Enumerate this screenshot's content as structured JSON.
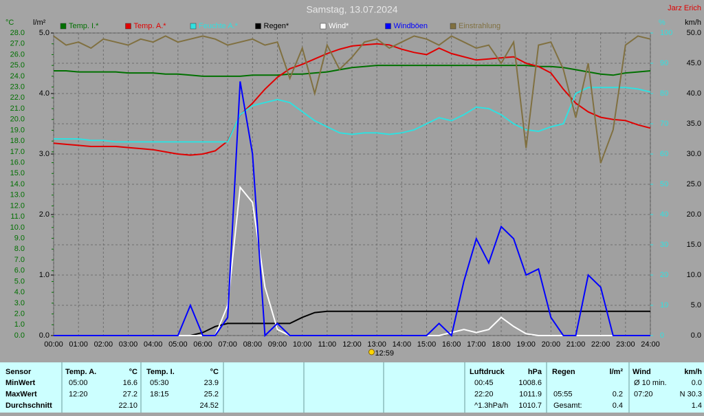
{
  "chart_data": {
    "type": "line",
    "title": "Samstag, 13.07.2024",
    "author": "Jarz Erich",
    "ylabel": "°C",
    "y2label": "l/m²",
    "y3label": "%",
    "y4label": "km/h",
    "grid": true,
    "xlim": [
      0,
      24
    ],
    "xticks": [
      {
        "value": 0,
        "label": "00:00"
      },
      {
        "value": 1,
        "label": "01:00"
      },
      {
        "value": 2,
        "label": "02:00"
      },
      {
        "value": 3,
        "label": "03:00"
      },
      {
        "value": 4,
        "label": "04:00"
      },
      {
        "value": 5,
        "label": "05:00"
      },
      {
        "value": 6,
        "label": "06:00"
      },
      {
        "value": 7,
        "label": "07:00"
      },
      {
        "value": 8,
        "label": "08:00"
      },
      {
        "value": 9,
        "label": "09:00"
      },
      {
        "value": 10,
        "label": "10:00"
      },
      {
        "value": 11,
        "label": "11:00"
      },
      {
        "value": 12,
        "label": "12:00"
      },
      {
        "value": 13,
        "label": "13:00"
      },
      {
        "value": 14,
        "label": "14:00"
      },
      {
        "value": 15,
        "label": "15:00"
      },
      {
        "value": 16,
        "label": "16:00"
      },
      {
        "value": 17,
        "label": "17:00"
      },
      {
        "value": 18,
        "label": "18:00"
      },
      {
        "value": 19,
        "label": "19:00"
      },
      {
        "value": 20,
        "label": "20:00"
      },
      {
        "value": 21,
        "label": "21:00"
      },
      {
        "value": 22,
        "label": "22:00"
      },
      {
        "value": 23,
        "label": "23:00"
      },
      {
        "value": 24,
        "label": "24:00"
      }
    ],
    "ylim": [
      0,
      28
    ],
    "yticks": [
      {
        "value": 0,
        "label": "0.0"
      },
      {
        "value": 1,
        "label": "1.0"
      },
      {
        "value": 2,
        "label": "2.0"
      },
      {
        "value": 3,
        "label": "3.0"
      },
      {
        "value": 4,
        "label": "4.0"
      },
      {
        "value": 5,
        "label": "5.0"
      },
      {
        "value": 6,
        "label": "6.0"
      },
      {
        "value": 7,
        "label": "7.0"
      },
      {
        "value": 8,
        "label": "8.0"
      },
      {
        "value": 9,
        "label": "9.0"
      },
      {
        "value": 10,
        "label": "10.0"
      },
      {
        "value": 11,
        "label": "11.0"
      },
      {
        "value": 12,
        "label": "12.0"
      },
      {
        "value": 13,
        "label": "13.0"
      },
      {
        "value": 14,
        "label": "14.0"
      },
      {
        "value": 15,
        "label": "15.0"
      },
      {
        "value": 16,
        "label": "16.0"
      },
      {
        "value": 17,
        "label": "17.0"
      },
      {
        "value": 18,
        "label": "18.0"
      },
      {
        "value": 19,
        "label": "19.0"
      },
      {
        "value": 20,
        "label": "20.0"
      },
      {
        "value": 21,
        "label": "21.0"
      },
      {
        "value": 22,
        "label": "22.0"
      },
      {
        "value": 23,
        "label": "23.0"
      },
      {
        "value": 24,
        "label": "24.0"
      },
      {
        "value": 25,
        "label": "25.0"
      },
      {
        "value": 26,
        "label": "26.0"
      },
      {
        "value": 27,
        "label": "27.0"
      },
      {
        "value": 28,
        "label": "28.0"
      }
    ],
    "y2lim": [
      0,
      5
    ],
    "y2ticks": [
      {
        "value": 0,
        "label": "0.0"
      },
      {
        "value": 1,
        "label": "1.0"
      },
      {
        "value": 2,
        "label": "2.0"
      },
      {
        "value": 3,
        "label": "3.0"
      },
      {
        "value": 4,
        "label": "4.0"
      },
      {
        "value": 5,
        "label": "5.0"
      }
    ],
    "y3lim": [
      0,
      100
    ],
    "y3ticks": [
      0,
      10,
      20,
      30,
      40,
      50,
      60,
      70,
      80,
      90,
      100
    ],
    "y4lim": [
      0,
      50
    ],
    "y4ticks": [
      {
        "value": 0,
        "label": "0.0"
      },
      {
        "value": 5,
        "label": "5.0"
      },
      {
        "value": 10,
        "label": "10.0"
      },
      {
        "value": 15,
        "label": "15.0"
      },
      {
        "value": 20,
        "label": "20.0"
      },
      {
        "value": 25,
        "label": "25.0"
      },
      {
        "value": 30,
        "label": "30.0"
      },
      {
        "value": 35,
        "label": "35.0"
      },
      {
        "value": 40,
        "label": "40.0"
      },
      {
        "value": 45,
        "label": "45.0"
      },
      {
        "value": 50,
        "label": "50.0"
      }
    ],
    "x": [
      0,
      0.5,
      1,
      1.5,
      2,
      2.5,
      3,
      3.5,
      4,
      4.5,
      5,
      5.5,
      6,
      6.5,
      7,
      7.5,
      8,
      8.5,
      9,
      9.5,
      10,
      10.5,
      11,
      11.5,
      12,
      12.5,
      13,
      13.5,
      14,
      14.5,
      15,
      15.5,
      16,
      16.5,
      17,
      17.5,
      18,
      18.5,
      19,
      19.5,
      20,
      20.5,
      21,
      21.5,
      22,
      22.5,
      23,
      23.5,
      24
    ],
    "series": [
      {
        "name": "Temp. I.*",
        "color": "#007000",
        "axis": "y",
        "values": [
          24.5,
          24.5,
          24.4,
          24.4,
          24.4,
          24.4,
          24.3,
          24.3,
          24.3,
          24.2,
          24.2,
          24.1,
          24.0,
          24.0,
          24.0,
          24.0,
          24.1,
          24.1,
          24.1,
          24.2,
          24.2,
          24.3,
          24.4,
          24.6,
          24.8,
          24.9,
          25.0,
          25.0,
          25.0,
          25.0,
          25.0,
          25.0,
          25.0,
          25.0,
          25.0,
          25.0,
          25.0,
          25.0,
          25.0,
          24.9,
          24.9,
          24.8,
          24.6,
          24.4,
          24.2,
          24.1,
          24.3,
          24.4,
          24.5
        ]
      },
      {
        "name": "Temp. A.*",
        "color": "#e00000",
        "axis": "y",
        "values": [
          17.8,
          17.7,
          17.6,
          17.5,
          17.5,
          17.5,
          17.4,
          17.3,
          17.2,
          17.0,
          16.8,
          16.7,
          16.8,
          17.1,
          18.0,
          20.4,
          21.5,
          22.8,
          23.9,
          24.7,
          25.1,
          25.6,
          26.1,
          26.5,
          26.8,
          26.9,
          27.0,
          26.9,
          26.5,
          26.2,
          26.0,
          26.6,
          26.1,
          25.8,
          25.5,
          25.6,
          25.7,
          25.8,
          25.2,
          24.9,
          24.3,
          22.8,
          21.5,
          20.7,
          20.2,
          20.0,
          19.9,
          19.5,
          19.2
        ]
      },
      {
        "name": "Feuchte A.*",
        "color": "#30e0e0",
        "axis": "y3",
        "values": [
          65,
          65,
          65,
          64.5,
          64.5,
          64,
          64,
          64,
          64,
          64,
          64,
          64,
          64,
          64,
          64,
          73,
          76,
          77,
          78,
          77,
          74,
          71,
          69,
          67,
          66.5,
          67,
          67,
          66.5,
          67,
          68,
          70,
          72,
          71,
          73,
          75.5,
          75,
          73,
          70,
          68,
          67.5,
          69,
          70,
          80,
          82,
          82,
          82,
          82,
          81.5,
          80.5
        ]
      },
      {
        "name": "Regen*",
        "color": "#000000",
        "axis": "y2",
        "values": [
          0,
          0,
          0,
          0,
          0,
          0,
          0,
          0,
          0,
          0,
          0,
          0,
          0.05,
          0.15,
          0.2,
          0.2,
          0.2,
          0.2,
          0.2,
          0.2,
          0.3,
          0.38,
          0.4,
          0.4,
          0.4,
          0.4,
          0.4,
          0.4,
          0.4,
          0.4,
          0.4,
          0.4,
          0.4,
          0.4,
          0.4,
          0.4,
          0.4,
          0.4,
          0.4,
          0.4,
          0.4,
          0.4,
          0.4,
          0.4,
          0.4,
          0.4,
          0.4,
          0.4,
          0.4
        ]
      },
      {
        "name": "Wind*",
        "color": "#ffffff",
        "axis": "y4",
        "values": [
          0,
          0,
          0,
          0,
          0,
          0,
          0,
          0,
          0,
          0,
          0,
          0,
          0,
          0,
          5,
          24.5,
          22,
          8,
          1,
          0,
          0,
          0,
          0,
          0,
          0,
          0,
          0,
          0,
          0,
          0,
          0,
          0,
          0.5,
          1,
          0.5,
          1,
          3,
          1.5,
          0.3,
          0,
          0,
          0,
          0,
          0,
          0,
          0,
          0,
          0,
          0
        ]
      },
      {
        "name": "Windböen",
        "color": "#0000ff",
        "axis": "y4",
        "values": [
          0,
          0,
          0,
          0,
          0,
          0,
          0,
          0,
          0,
          0,
          0,
          5,
          0,
          0,
          3,
          42,
          30,
          0,
          2,
          0,
          0,
          0,
          0,
          0,
          0,
          0,
          0,
          0,
          0,
          0,
          0,
          2,
          0,
          9,
          16,
          12,
          18,
          16,
          10,
          11,
          3,
          0,
          0,
          10,
          8,
          0,
          0,
          0,
          0
        ]
      },
      {
        "name": "Einstrahlung",
        "color": "#807040",
        "axis": "y3",
        "values": [
          99,
          96,
          97,
          95,
          98,
          97,
          96,
          98,
          97,
          99,
          97,
          98,
          99,
          98,
          96,
          97,
          98,
          96,
          97,
          85,
          95,
          80,
          96,
          88,
          92,
          97,
          98,
          95,
          97,
          99,
          98,
          96,
          99,
          97,
          95,
          96,
          90,
          97,
          62,
          96,
          97,
          88,
          72,
          90,
          57,
          68,
          96,
          99,
          98
        ]
      }
    ],
    "annotation": {
      "text": "12:59",
      "x": 12.98
    }
  },
  "table": {
    "header": [
      "Sensor",
      "Temp. A.",
      "°C",
      "Temp. I.",
      "°C",
      "Luftdruck",
      "hPa",
      "Regen",
      "l/m²",
      "Wind",
      "km/h"
    ],
    "rows": [
      [
        "MinWert",
        "05:00",
        "16.6",
        "05:30",
        "23.9",
        "00:45",
        "1008.6",
        null,
        null,
        "Ø 10 min.",
        "0.0"
      ],
      [
        "MaxWert",
        "12:20",
        "27.2",
        "18:15",
        "25.2",
        "22:20",
        "1011.9",
        "05:55",
        "0.2",
        "07:20",
        "N 30.3"
      ],
      [
        "Durchschnitt",
        null,
        "22.10",
        null,
        "24.52",
        "^1.3hPa/h",
        "1010.7",
        "Gesamt:",
        "0.4",
        null,
        "1.4"
      ]
    ]
  }
}
